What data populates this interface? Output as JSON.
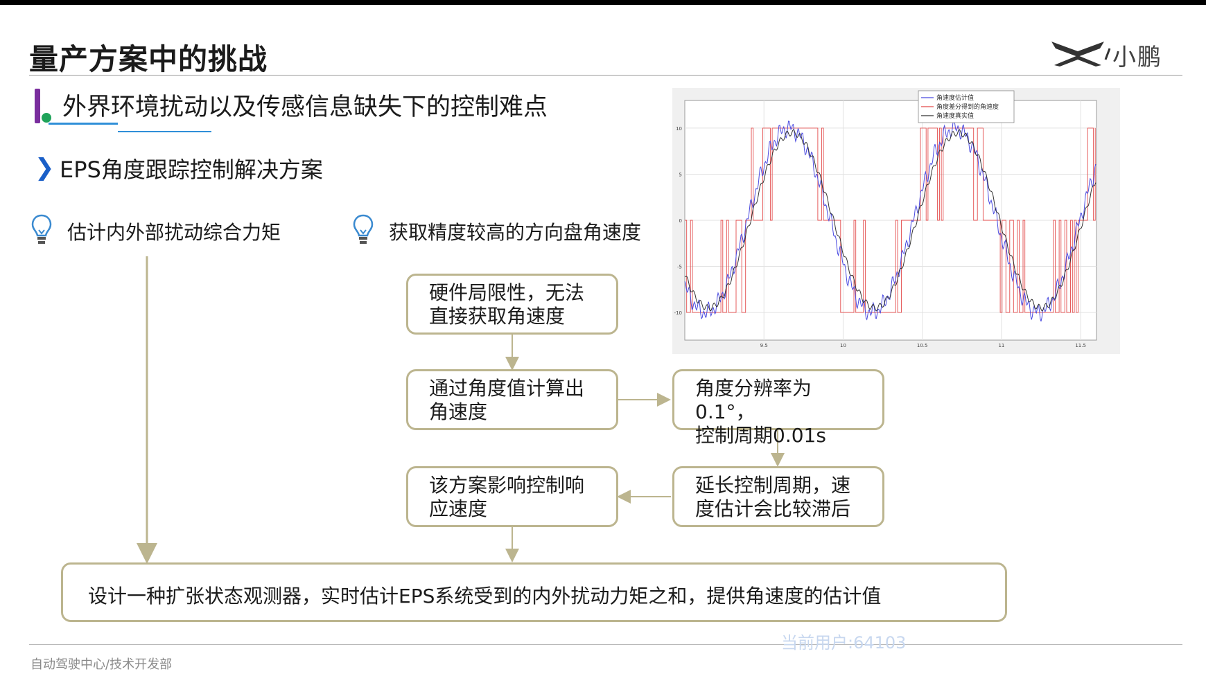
{
  "header": {
    "title": "量产方案中的挑战",
    "logo_text": "小鹏"
  },
  "section": {
    "title": "外界环境扰动以及传感信息缺失下的控制难点",
    "subtitle": "EPS角度跟踪控制解决方案"
  },
  "items": {
    "left": "估计内外部扰动综合力矩",
    "right": "获取精度较高的方向盘角速度"
  },
  "flow": {
    "box1": "硬件局限性，无法\n直接获取角速度",
    "box2": "通过角度值计算出\n角速度",
    "box3": "角度分辨率为0.1°，\n控制周期0.01s",
    "box4": "延长控制周期，速\n度估计会比较滞后",
    "box5": "该方案影响控制响\n应速度",
    "final": "设计一种扩张状态观测器，实时估计EPS系统受到的内外扰动力矩之和，提供角速度的估计值"
  },
  "chart_data": {
    "type": "line",
    "xlim": [
      9.0,
      11.6
    ],
    "ylim": [
      -13,
      13
    ],
    "x_ticks": [
      "9.5",
      "10",
      "10.5",
      "11",
      "11.5"
    ],
    "y_ticks": [
      "10",
      "5",
      "0",
      "-5",
      "-10"
    ],
    "grid": true,
    "legend_position": "top-right",
    "series": [
      {
        "name": "角速度估计值",
        "color": "#4a4ae0"
      },
      {
        "name": "角度差分得到的角速度",
        "color": "#e34b4b"
      },
      {
        "name": "角速度真实值",
        "color": "#333333"
      }
    ]
  },
  "footer": {
    "department": "自动驾驶中心/技术开发部",
    "watermark": "当前用户:64103"
  },
  "colors": {
    "box_border": "#bcb58f",
    "accent_purple": "#7a2e9e",
    "accent_green": "#1fa35a",
    "accent_blue": "#2f8fd8",
    "chevron_blue": "#1a5fc8"
  }
}
